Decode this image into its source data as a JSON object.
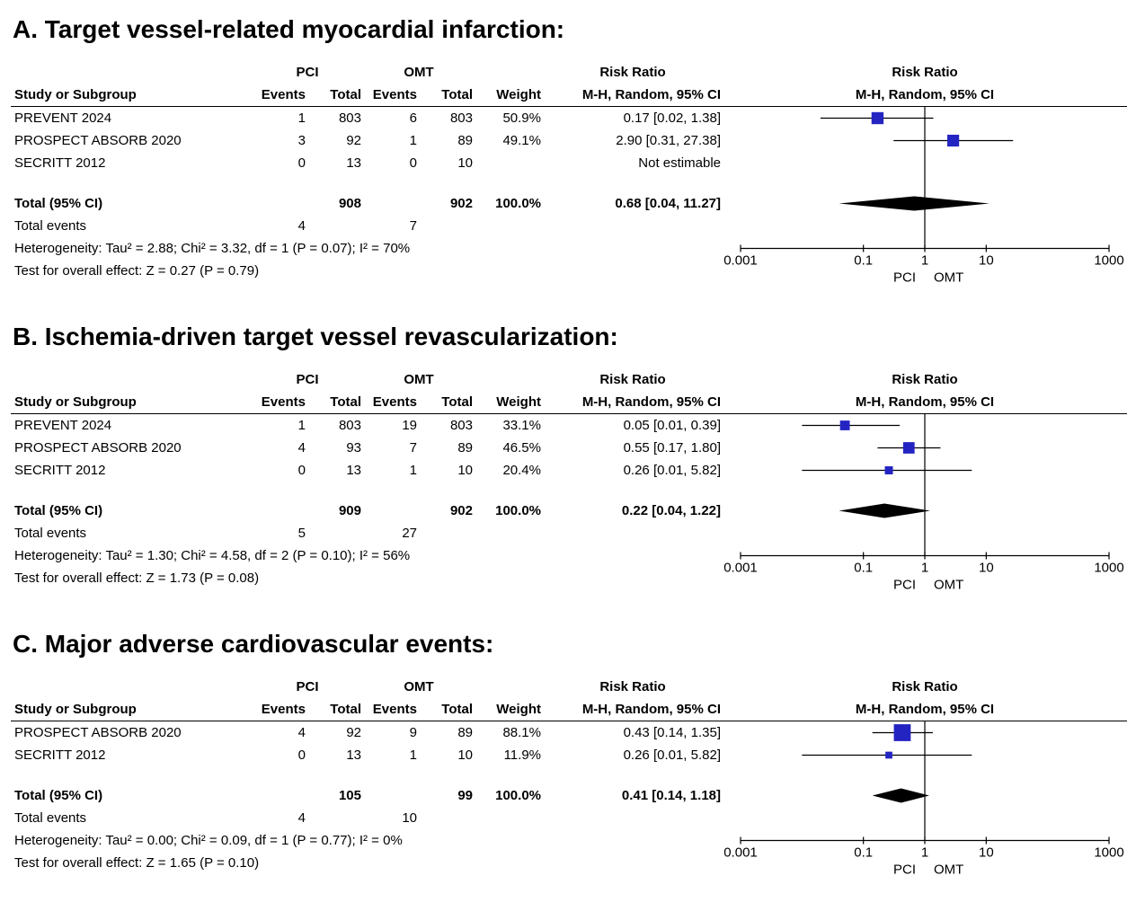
{
  "chart_data": {
    "type": "forest",
    "scale": {
      "type": "log10",
      "min": 0.001,
      "max": 1000,
      "tick_values": [
        0.001,
        0.1,
        1,
        10,
        1000
      ],
      "ticks": [
        "0.001",
        "0.1",
        "1",
        "10",
        "1000"
      ]
    },
    "colors": {
      "square": "#2424C2",
      "diamond": "#000000",
      "line": "#000000",
      "text": "#000000",
      "background": "#ffffff"
    },
    "panels": [
      {
        "title": "A. Target vessel-related myocardial infarction:",
        "headers": {
          "study": "Study or Subgroup",
          "group1": "PCI",
          "group2": "OMT",
          "events": "Events",
          "total": "Total",
          "weight": "Weight",
          "risk_ratio": "Risk Ratio",
          "method": "M-H, Random, 95% CI"
        },
        "rows": [
          {
            "study": "PREVENT 2024",
            "events1": "1",
            "total1": "803",
            "events2": "6",
            "total2": "803",
            "weight": "50.9%",
            "ci_text": "0.17 [0.02, 1.38]",
            "rr": 0.17,
            "lo": 0.02,
            "hi": 1.38,
            "weight_pct": 50.9
          },
          {
            "study": "PROSPECT ABSORB 2020",
            "events1": "3",
            "total1": "92",
            "events2": "1",
            "total2": "89",
            "weight": "49.1%",
            "ci_text": "2.90 [0.31, 27.38]",
            "rr": 2.9,
            "lo": 0.31,
            "hi": 27.38,
            "weight_pct": 49.1
          },
          {
            "study": "SECRITT 2012",
            "events1": "0",
            "total1": "13",
            "events2": "0",
            "total2": "10",
            "weight": "",
            "ci_text": "Not estimable",
            "rr": null,
            "lo": null,
            "hi": null,
            "weight_pct": 0
          }
        ],
        "total": {
          "label": "Total (95% CI)",
          "total1": "908",
          "total2": "902",
          "weight": "100.0%",
          "ci_text": "0.68 [0.04, 11.27]",
          "rr": 0.68,
          "lo": 0.04,
          "hi": 11.27
        },
        "total_events": {
          "label": "Total events",
          "events1": "4",
          "events2": "7"
        },
        "heterogeneity": "Heterogeneity: Tau² = 2.88; Chi² = 3.32, df = 1 (P = 0.07); I² = 70%",
        "overall_effect": "Test for overall effect: Z = 0.27 (P = 0.79)",
        "axis_labels": {
          "left": "PCI",
          "right": "OMT"
        }
      },
      {
        "title": "B. Ischemia-driven target vessel revascularization:",
        "headers": {
          "study": "Study or Subgroup",
          "group1": "PCI",
          "group2": "OMT",
          "events": "Events",
          "total": "Total",
          "weight": "Weight",
          "risk_ratio": "Risk Ratio",
          "method": "M-H, Random, 95% CI"
        },
        "rows": [
          {
            "study": "PREVENT 2024",
            "events1": "1",
            "total1": "803",
            "events2": "19",
            "total2": "803",
            "weight": "33.1%",
            "ci_text": "0.05 [0.01, 0.39]",
            "rr": 0.05,
            "lo": 0.01,
            "hi": 0.39,
            "weight_pct": 33.1
          },
          {
            "study": "PROSPECT ABSORB 2020",
            "events1": "4",
            "total1": "93",
            "events2": "7",
            "total2": "89",
            "weight": "46.5%",
            "ci_text": "0.55 [0.17, 1.80]",
            "rr": 0.55,
            "lo": 0.17,
            "hi": 1.8,
            "weight_pct": 46.5
          },
          {
            "study": "SECRITT 2012",
            "events1": "0",
            "total1": "13",
            "events2": "1",
            "total2": "10",
            "weight": "20.4%",
            "ci_text": "0.26 [0.01, 5.82]",
            "rr": 0.26,
            "lo": 0.01,
            "hi": 5.82,
            "weight_pct": 20.4
          }
        ],
        "total": {
          "label": "Total (95% CI)",
          "total1": "909",
          "total2": "902",
          "weight": "100.0%",
          "ci_text": "0.22 [0.04, 1.22]",
          "rr": 0.22,
          "lo": 0.04,
          "hi": 1.22
        },
        "total_events": {
          "label": "Total events",
          "events1": "5",
          "events2": "27"
        },
        "heterogeneity": "Heterogeneity: Tau² = 1.30; Chi² = 4.58, df = 2 (P = 0.10); I² = 56%",
        "overall_effect": "Test for overall effect: Z = 1.73 (P = 0.08)",
        "axis_labels": {
          "left": "PCI",
          "right": "OMT"
        }
      },
      {
        "title": "C. Major adverse cardiovascular events:",
        "headers": {
          "study": "Study or Subgroup",
          "group1": "PCI",
          "group2": "OMT",
          "events": "Events",
          "total": "Total",
          "weight": "Weight",
          "risk_ratio": "Risk Ratio",
          "method": "M-H, Random, 95% CI"
        },
        "rows": [
          {
            "study": "PROSPECT ABSORB 2020",
            "events1": "4",
            "total1": "92",
            "events2": "9",
            "total2": "89",
            "weight": "88.1%",
            "ci_text": "0.43 [0.14, 1.35]",
            "rr": 0.43,
            "lo": 0.14,
            "hi": 1.35,
            "weight_pct": 88.1
          },
          {
            "study": "SECRITT 2012",
            "events1": "0",
            "total1": "13",
            "events2": "1",
            "total2": "10",
            "weight": "11.9%",
            "ci_text": "0.26 [0.01, 5.82]",
            "rr": 0.26,
            "lo": 0.01,
            "hi": 5.82,
            "weight_pct": 11.9
          }
        ],
        "total": {
          "label": "Total (95% CI)",
          "total1": "105",
          "total2": "99",
          "weight": "100.0%",
          "ci_text": "0.41 [0.14, 1.18]",
          "rr": 0.41,
          "lo": 0.14,
          "hi": 1.18
        },
        "total_events": {
          "label": "Total events",
          "events1": "4",
          "events2": "10"
        },
        "heterogeneity": "Heterogeneity: Tau² = 0.00; Chi² = 0.09, df = 1 (P = 0.77); I² = 0%",
        "overall_effect": "Test for overall effect: Z = 1.65 (P = 0.10)",
        "axis_labels": {
          "left": "PCI",
          "right": "OMT"
        }
      }
    ]
  }
}
